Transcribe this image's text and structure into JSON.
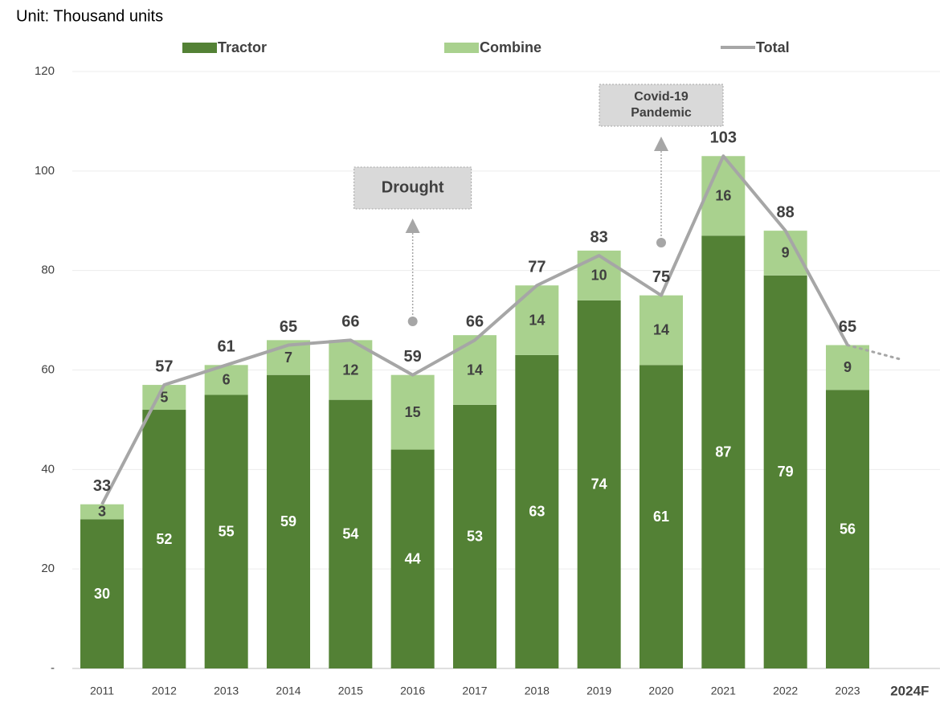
{
  "chart_data": {
    "type": "stacked-bar-line",
    "subtitle": "Unit: Thousand  units",
    "categories": [
      "2011",
      "2012",
      "2013",
      "2014",
      "2015",
      "2016",
      "2017",
      "2018",
      "2019",
      "2020",
      "2021",
      "2022",
      "2023",
      "2024F"
    ],
    "series": [
      {
        "name": "Tractor",
        "type": "bar",
        "color": "#538135",
        "label_color": "#ffffff",
        "values": [
          30,
          52,
          55,
          59,
          54,
          44,
          53,
          63,
          74,
          61,
          87,
          79,
          56,
          null
        ]
      },
      {
        "name": "Combine",
        "type": "bar",
        "color": "#a9d18e",
        "label_color": "#404040",
        "values": [
          3,
          5,
          6,
          7,
          12,
          15,
          14,
          14,
          10,
          14,
          16,
          9,
          9,
          null
        ]
      },
      {
        "name": "Total",
        "type": "line",
        "color": "#a6a6a6",
        "values": [
          33,
          57,
          61,
          65,
          66,
          59,
          66,
          77,
          83,
          75,
          103,
          88,
          65,
          62
        ],
        "value_labels": [
          "33",
          "57",
          "61",
          "65",
          "66",
          "59",
          "66",
          "77",
          "83",
          "75",
          "103",
          "88",
          "65",
          null
        ]
      }
    ],
    "annotations": [
      {
        "text": [
          "Drought"
        ],
        "category": "2016"
      },
      {
        "text": [
          "Covid-19",
          "Pandemic"
        ],
        "category": "2020"
      }
    ],
    "ylim": [
      0,
      120
    ],
    "yticks": [
      {
        "value": 0,
        "label": "-"
      },
      20,
      40,
      60,
      80,
      100,
      120
    ],
    "grid": true
  }
}
